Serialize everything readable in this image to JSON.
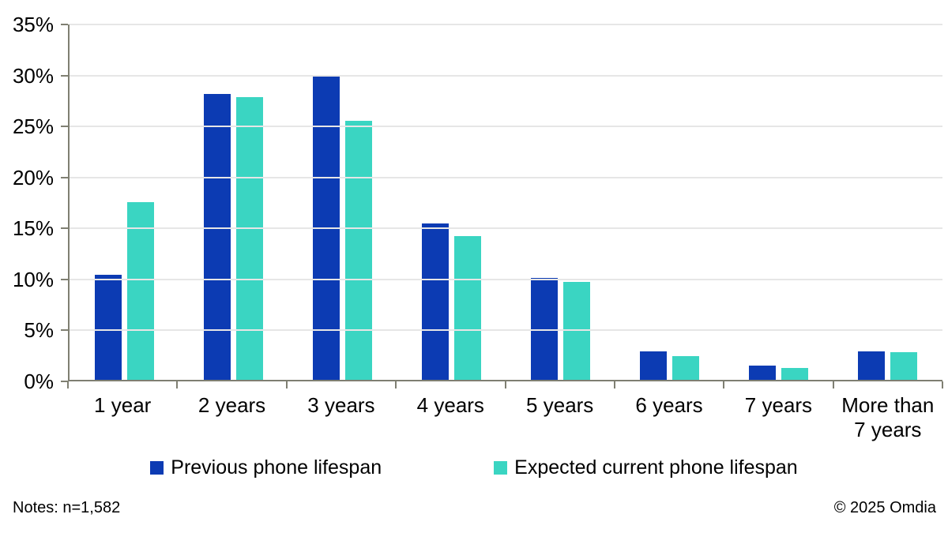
{
  "chart_data": {
    "type": "bar",
    "title": "",
    "categories": [
      "1 year",
      "2 years",
      "3 years",
      "4 years",
      "5 years",
      "6 years",
      "7 years",
      "More than 7 years"
    ],
    "series": [
      {
        "name": "Previous phone lifespan",
        "color": "#0C3BB3",
        "values": [
          10.3,
          28.0,
          29.8,
          15.3,
          10.0,
          2.8,
          1.4,
          2.8
        ]
      },
      {
        "name": "Expected current phone lifespan",
        "color": "#3AD5C2",
        "values": [
          17.4,
          27.7,
          25.4,
          14.1,
          9.6,
          2.3,
          1.2,
          2.7
        ]
      }
    ],
    "ylim": [
      0,
      35
    ],
    "ytick_step": 5,
    "ytick_labels": [
      "0%",
      "5%",
      "10%",
      "15%",
      "20%",
      "25%",
      "30%",
      "35%"
    ],
    "grid": true,
    "legend_position": "bottom"
  },
  "footer": {
    "notes": "Notes: n=1,582",
    "copyright": "© 2025 Omdia"
  },
  "colors": {
    "axis": "#7F7F72",
    "gridline": "#E6E6E6",
    "background": "#FFFFFF",
    "text": "#000000"
  }
}
